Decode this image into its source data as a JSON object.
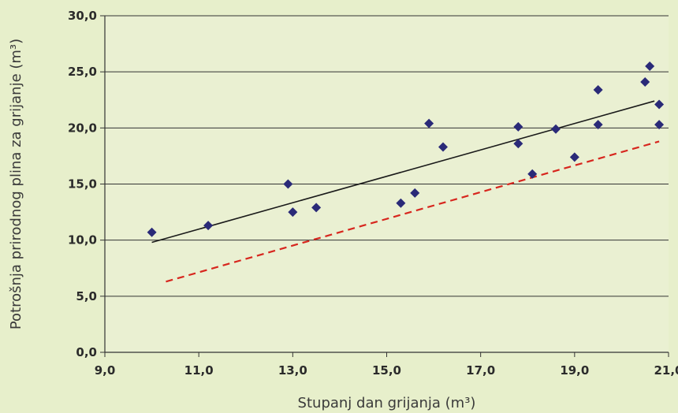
{
  "chart_data": {
    "type": "scatter",
    "xlabel": "Stupanj dan grijanja (m³)",
    "ylabel": "Potrošnja prirodnog plina za grijanje (m³)",
    "xlim": [
      9,
      21
    ],
    "ylim": [
      0,
      30
    ],
    "x_ticks": [
      "9,0",
      "11,0",
      "13,0",
      "15,0",
      "17,0",
      "19,0",
      "21,0"
    ],
    "y_ticks": [
      "0,0",
      "5,0",
      "10,0",
      "15,0",
      "20,0",
      "25,0",
      "30,0"
    ],
    "grid": "horizontal",
    "background_color": "#e7efcb",
    "plot_background_color": "#eaf0d2",
    "points": {
      "color": "#2a2a78",
      "marker": "diamond",
      "values": [
        [
          10.0,
          10.7
        ],
        [
          11.2,
          11.3
        ],
        [
          12.9,
          15.0
        ],
        [
          13.0,
          12.5
        ],
        [
          13.5,
          12.9
        ],
        [
          15.3,
          13.3
        ],
        [
          15.6,
          14.2
        ],
        [
          15.9,
          20.4
        ],
        [
          16.2,
          18.3
        ],
        [
          17.8,
          20.1
        ],
        [
          17.8,
          18.6
        ],
        [
          18.1,
          15.9
        ],
        [
          18.6,
          19.9
        ],
        [
          19.0,
          17.4
        ],
        [
          19.5,
          23.4
        ],
        [
          19.5,
          20.3
        ],
        [
          20.5,
          24.1
        ],
        [
          20.6,
          25.5
        ],
        [
          20.8,
          22.1
        ],
        [
          20.8,
          20.3
        ]
      ]
    },
    "trend_line": {
      "color": "#1a1a1a",
      "style": "solid",
      "from": [
        10.0,
        9.8
      ],
      "to": [
        20.7,
        22.4
      ]
    },
    "reference_line": {
      "color": "#d7261e",
      "style": "dashed",
      "from": [
        10.3,
        6.3
      ],
      "to": [
        20.8,
        18.8
      ]
    }
  }
}
